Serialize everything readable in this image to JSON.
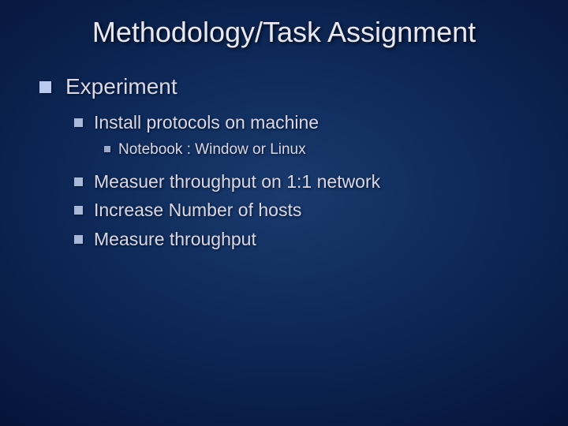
{
  "title": {
    "text": "Methodology/Task Assignment",
    "fontsize": 36,
    "color": "#e8e8f4"
  },
  "fontsizes": {
    "lvl1": 28,
    "lvl2": 23,
    "lvl3": 19
  },
  "text_color": "#d8d8ec",
  "bullets": [
    {
      "level": 1,
      "text": "Experiment"
    },
    {
      "level": 2,
      "text": "Install protocols on machine"
    },
    {
      "level": 3,
      "text": "Notebook : Window or Linux"
    },
    {
      "level": 2,
      "text": "Measuer throughput on 1:1 network"
    },
    {
      "level": 2,
      "text": "Increase Number of hosts"
    },
    {
      "level": 2,
      "text": "Measure throughput"
    }
  ]
}
